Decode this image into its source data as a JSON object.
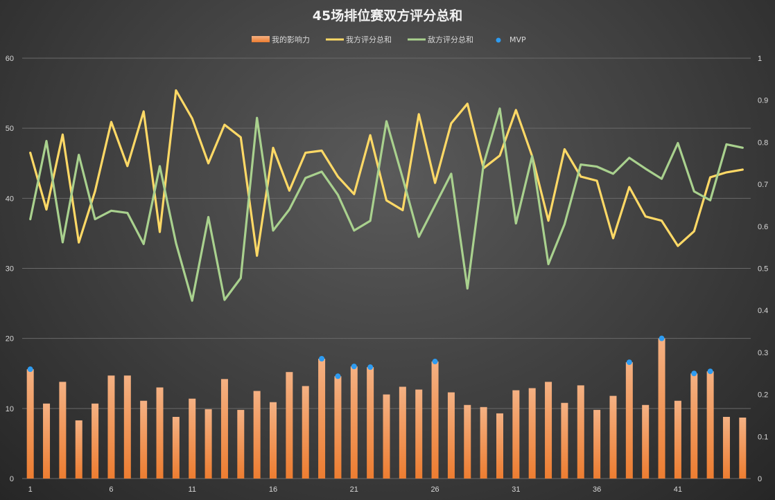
{
  "chart_data": {
    "type": "bar+line",
    "title": "45场排位赛双方评分总和",
    "legend": {
      "position": "top",
      "entries": [
        "我的影响力",
        "我方评分总和",
        "敌方评分总和",
        "MVP"
      ]
    },
    "colors": {
      "bar": "#ed7d31",
      "ours": "#ffd966",
      "enemy": "#a9d18e",
      "mvp": "#2e9bf0",
      "grid": "#6a6a6a",
      "text": "#d9d9d9"
    },
    "x": [
      1,
      2,
      3,
      4,
      5,
      6,
      7,
      8,
      9,
      10,
      11,
      12,
      13,
      14,
      15,
      16,
      17,
      18,
      19,
      20,
      21,
      22,
      23,
      24,
      25,
      26,
      27,
      28,
      29,
      30,
      31,
      32,
      33,
      34,
      35,
      36,
      37,
      38,
      39,
      40,
      41,
      42,
      43,
      44,
      45
    ],
    "x_tick_labels": [
      "1",
      "6",
      "11",
      "16",
      "21",
      "26",
      "31",
      "36",
      "41"
    ],
    "y_left": {
      "min": 0,
      "max": 60,
      "ticks": [
        "0",
        "10",
        "20",
        "30",
        "40",
        "50",
        "60"
      ]
    },
    "y_right": {
      "min": 0,
      "max": 1,
      "ticks": [
        "0",
        "0.1",
        "0.2",
        "0.3",
        "0.4",
        "0.5",
        "0.6",
        "0.7",
        "0.8",
        "0.9",
        "1"
      ]
    },
    "grid": true,
    "series": [
      {
        "name": "我的影响力",
        "type": "bar",
        "axis": "left",
        "values": [
          15.6,
          10.7,
          13.8,
          8.3,
          10.7,
          14.7,
          14.7,
          11.1,
          13.0,
          8.8,
          11.4,
          9.9,
          14.2,
          9.8,
          12.5,
          10.9,
          15.2,
          13.2,
          17.1,
          14.6,
          16.0,
          15.9,
          12.0,
          13.1,
          12.7,
          16.7,
          12.3,
          10.5,
          10.2,
          9.3,
          12.6,
          12.9,
          13.8,
          10.8,
          13.3,
          9.8,
          11.8,
          16.6,
          10.5,
          20.0,
          11.1,
          15.0,
          15.3,
          8.8,
          8.7
        ]
      },
      {
        "name": "我方评分总和",
        "type": "line",
        "axis": "left",
        "values": [
          46.5,
          38.4,
          49.1,
          33.7,
          41.0,
          50.9,
          44.6,
          52.4,
          35.2,
          55.4,
          51.4,
          45.0,
          50.5,
          48.7,
          31.8,
          47.2,
          41.1,
          46.5,
          46.8,
          43.1,
          40.6,
          49.0,
          39.7,
          38.3,
          52.0,
          42.2,
          50.7,
          53.5,
          44.3,
          46.1,
          52.6,
          46.0,
          36.8,
          47.0,
          43.1,
          42.5,
          34.3,
          41.6,
          37.4,
          36.8,
          33.2,
          35.3,
          43.0,
          43.7,
          44.1
        ]
      },
      {
        "name": "敌方评分总和",
        "type": "line",
        "axis": "right",
        "values": [
          0.617,
          0.803,
          0.562,
          0.77,
          0.617,
          0.637,
          0.632,
          0.558,
          0.743,
          0.56,
          0.423,
          0.622,
          0.425,
          0.477,
          0.858,
          0.59,
          0.64,
          0.715,
          0.73,
          0.675,
          0.59,
          0.613,
          0.85,
          0.715,
          0.575,
          0.65,
          0.725,
          0.452,
          0.748,
          0.88,
          0.607,
          0.767,
          0.51,
          0.605,
          0.747,
          0.742,
          0.725,
          0.763,
          0.737,
          0.713,
          0.798,
          0.683,
          0.662,
          0.795,
          0.787
        ]
      },
      {
        "name": "MVP",
        "type": "scatter",
        "axis": "left",
        "points": [
          {
            "x": 1,
            "y": 15.6
          },
          {
            "x": 19,
            "y": 17.1
          },
          {
            "x": 20,
            "y": 14.6
          },
          {
            "x": 21,
            "y": 16.0
          },
          {
            "x": 22,
            "y": 15.9
          },
          {
            "x": 26,
            "y": 16.7
          },
          {
            "x": 38,
            "y": 16.6
          },
          {
            "x": 40,
            "y": 20.0
          },
          {
            "x": 42,
            "y": 15.0
          },
          {
            "x": 43,
            "y": 15.3
          }
        ]
      }
    ]
  }
}
